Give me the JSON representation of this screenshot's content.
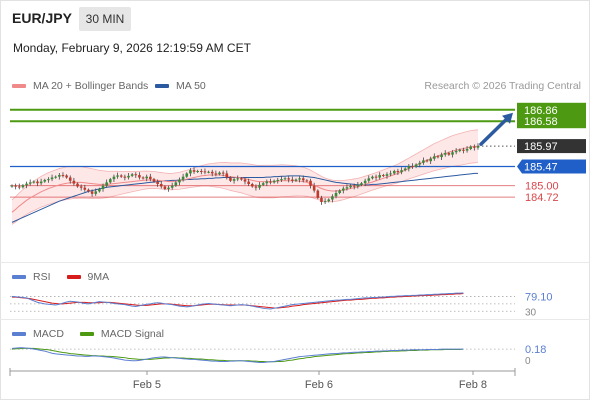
{
  "header": {
    "symbol": "EUR/JPY",
    "timeframe": "30 MIN",
    "datetime": "Monday, February 9, 2026 12:19:59 AM CET"
  },
  "legend": {
    "ma20_label": "MA 20 + Bollinger Bands",
    "ma50_label": "MA 50",
    "rsi_label": "RSI",
    "rsi_ma_label": "9MA",
    "macd_label": "MACD",
    "macd_signal_label": "MACD Signal"
  },
  "credit": "Research © 2026 Trading Central",
  "colors": {
    "ma20": "#f08a8a",
    "ma50": "#2c5aa0",
    "bollinger_fill": "#fde3e3",
    "candle_up": "#3a8a3a",
    "candle_down": "#c0392b",
    "target_green": "#4d9a12",
    "pivot_blue": "#1f5fc7",
    "support_red": "#d9474b",
    "last_price_bg": "#333333",
    "rsi": "#5b7fd1",
    "rsi_ma": "#d81b1b",
    "macd": "#5b7fd1",
    "macd_signal": "#4d9a12"
  },
  "chart_data": [
    {
      "type": "candlestick",
      "name": "price",
      "x_ticks": [
        "Feb 5",
        "Feb 6",
        "Feb 8"
      ],
      "ylim": [
        183.3,
        187.1
      ],
      "levels": [
        {
          "value": 186.86,
          "label": "186.86",
          "kind": "target"
        },
        {
          "value": 186.58,
          "label": "186.58",
          "kind": "target"
        },
        {
          "value": 185.97,
          "label": "185.97",
          "kind": "last"
        },
        {
          "value": 185.47,
          "label": "185.47",
          "kind": "pivot"
        },
        {
          "value": 185.0,
          "label": "185.00",
          "kind": "support"
        },
        {
          "value": 184.72,
          "label": "184.72",
          "kind": "support"
        }
      ],
      "closes": [
        185.0,
        184.98,
        184.96,
        185.01,
        185.05,
        185.08,
        185.1,
        185.06,
        185.1,
        185.14,
        185.16,
        185.2,
        185.22,
        185.26,
        185.25,
        185.2,
        185.12,
        185.05,
        184.98,
        184.95,
        184.9,
        184.86,
        184.8,
        184.86,
        184.92,
        185.0,
        185.08,
        185.16,
        185.22,
        185.25,
        185.22,
        185.2,
        185.24,
        185.28,
        185.26,
        185.2,
        185.18,
        185.22,
        185.16,
        185.1,
        185.04,
        184.98,
        184.92,
        184.95,
        185.0,
        185.08,
        185.15,
        185.22,
        185.3,
        185.38,
        185.34,
        185.36,
        185.35,
        185.33,
        185.34,
        185.3,
        185.28,
        185.32,
        185.3,
        185.2,
        185.12,
        185.16,
        185.18,
        185.15,
        185.1,
        185.04,
        184.98,
        184.95,
        185.02,
        185.06,
        185.1,
        185.08,
        185.12,
        185.14,
        185.16,
        185.18,
        185.15,
        185.12,
        185.15,
        185.18,
        185.13,
        185.12,
        185.0,
        184.88,
        184.7,
        184.6,
        184.62,
        184.66,
        184.74,
        184.82,
        184.88,
        184.93,
        184.96,
        185.0,
        184.98,
        185.02,
        185.06,
        185.12,
        185.18,
        185.22,
        185.2,
        185.26,
        185.24,
        185.28,
        185.3,
        185.36,
        185.33,
        185.38,
        185.42,
        185.48,
        185.46,
        185.52,
        185.56,
        185.62,
        185.6,
        185.66,
        185.72,
        185.7,
        185.76,
        185.8,
        185.76,
        185.82,
        185.85,
        185.88,
        185.86,
        185.9,
        185.96,
        185.93,
        185.97
      ],
      "ma20": [
        184.35,
        184.42,
        184.5,
        184.57,
        184.64,
        184.7,
        184.75,
        184.8,
        184.85,
        184.89,
        184.93,
        184.96,
        184.99,
        185.02,
        185.04,
        185.06,
        185.07,
        185.08,
        185.08,
        185.08,
        185.07,
        185.06,
        185.05,
        185.04,
        185.03,
        185.03,
        185.03,
        185.04,
        185.05,
        185.06,
        185.07,
        185.08,
        185.09,
        185.1,
        185.11,
        185.12,
        185.13,
        185.14,
        185.14,
        185.14,
        185.13,
        185.12,
        185.11,
        185.1,
        185.1,
        185.11,
        185.12,
        185.14,
        185.16,
        185.18,
        185.2,
        185.22,
        185.24,
        185.25,
        185.26,
        185.26,
        185.26,
        185.26,
        185.25,
        185.24,
        185.22,
        185.21,
        185.2,
        185.19,
        185.17,
        185.15,
        185.13,
        185.11,
        185.1,
        185.1,
        185.1,
        185.1,
        185.1,
        185.11,
        185.12,
        185.12,
        185.12,
        185.12,
        185.12,
        185.11,
        185.1,
        185.08,
        185.05,
        185.01,
        184.97,
        184.93,
        184.9,
        184.88,
        184.87,
        184.87,
        184.88,
        184.89,
        184.91,
        184.93,
        184.95,
        184.97,
        185.0,
        185.03,
        185.06,
        185.09,
        185.12,
        185.15,
        185.18,
        185.21,
        185.24,
        185.27,
        185.3,
        185.34,
        185.38,
        185.42,
        185.46,
        185.5,
        185.54,
        185.58,
        185.62,
        185.66,
        185.7,
        185.73,
        185.76,
        185.79,
        185.82,
        185.85,
        185.87,
        185.89,
        185.91,
        185.93,
        185.95,
        185.96,
        185.97
      ],
      "ma50": [
        184.1,
        184.14,
        184.18,
        184.22,
        184.26,
        184.3,
        184.34,
        184.38,
        184.42,
        184.46,
        184.5,
        184.54,
        184.58,
        184.62,
        184.65,
        184.68,
        184.71,
        184.74,
        184.77,
        184.8,
        184.83,
        184.86,
        184.88,
        184.9,
        184.92,
        184.94,
        184.96,
        184.97,
        184.98,
        184.99,
        185.0,
        185.01,
        185.02,
        185.03,
        185.04,
        185.05,
        185.06,
        185.07,
        185.08,
        185.09,
        185.1,
        185.11,
        185.12,
        185.12,
        185.13,
        185.13,
        185.14,
        185.14,
        185.15,
        185.15,
        185.16,
        185.16,
        185.17,
        185.17,
        185.18,
        185.18,
        185.19,
        185.19,
        185.2,
        185.2,
        185.2,
        185.2,
        185.2,
        185.2,
        185.2,
        185.2,
        185.2,
        185.2,
        185.2,
        185.2,
        185.21,
        185.21,
        185.22,
        185.22,
        185.23,
        185.23,
        185.24,
        185.24,
        185.24,
        185.24,
        185.23,
        185.22,
        185.21,
        185.2,
        185.18,
        185.16,
        185.14,
        185.12,
        185.1,
        185.08,
        185.07,
        185.06,
        185.05,
        185.04,
        185.03,
        185.02,
        185.02,
        185.02,
        185.02,
        185.03,
        185.03,
        185.04,
        185.05,
        185.06,
        185.07,
        185.08,
        185.09,
        185.1,
        185.11,
        185.12,
        185.13,
        185.14,
        185.15,
        185.16,
        185.17,
        185.18,
        185.19,
        185.2,
        185.21,
        185.22,
        185.23,
        185.24,
        185.25,
        185.26,
        185.27,
        185.28,
        185.29,
        185.3,
        185.3
      ]
    },
    {
      "type": "line",
      "name": "RSI",
      "ylim": [
        20,
        90
      ],
      "last_label": "79.10",
      "clipped_tick": "30",
      "reference_lines": [
        70,
        50,
        30
      ],
      "rsi": [
        70,
        69,
        68,
        67,
        66,
        62,
        58,
        54,
        52,
        50,
        49,
        48,
        47,
        49,
        52,
        55,
        57,
        56,
        55,
        53,
        51,
        50,
        52,
        54,
        56,
        55,
        54,
        53,
        51,
        50,
        49,
        48,
        46,
        44,
        43,
        45,
        47,
        49,
        50,
        52,
        53,
        52,
        50,
        49,
        48,
        46,
        44,
        43,
        42,
        43,
        45,
        47,
        49,
        50,
        51,
        50,
        49,
        48,
        47,
        46,
        45,
        46,
        47,
        48,
        47,
        46,
        44,
        42,
        40,
        38,
        37,
        36,
        38,
        40,
        42,
        44,
        46,
        48,
        49,
        50,
        51,
        52,
        53,
        54,
        55,
        56,
        57,
        58,
        59,
        60,
        60,
        61,
        62,
        62,
        63,
        64,
        65,
        66,
        66,
        67,
        67,
        68,
        68,
        69,
        70,
        70,
        71,
        71,
        72,
        72,
        73,
        73,
        74,
        74,
        75,
        75,
        76,
        76,
        77,
        77,
        78,
        78,
        79,
        79,
        79.1
      ],
      "rsi_ma": [
        68,
        68,
        67,
        66,
        65,
        64,
        62,
        60,
        58,
        56,
        54,
        52,
        51,
        50,
        50,
        51,
        52,
        53,
        54,
        54,
        54,
        53,
        53,
        53,
        53,
        54,
        54,
        54,
        53,
        52,
        51,
        50,
        49,
        48,
        47,
        46,
        46,
        46,
        47,
        48,
        49,
        50,
        50,
        50,
        49,
        48,
        47,
        46,
        45,
        45,
        45,
        46,
        47,
        48,
        49,
        49,
        49,
        48,
        48,
        47,
        47,
        47,
        47,
        47,
        47,
        46,
        45,
        44,
        43,
        42,
        41,
        40,
        39,
        39,
        40,
        41,
        42,
        44,
        45,
        46,
        48,
        49,
        50,
        51,
        52,
        53,
        54,
        55,
        56,
        57,
        58,
        59,
        60,
        60,
        61,
        62,
        62,
        63,
        64,
        65,
        65,
        66,
        66,
        67,
        68,
        68,
        69,
        69,
        70,
        70,
        71,
        71,
        72,
        72,
        73,
        73,
        74,
        74,
        75,
        75,
        76,
        76,
        77,
        77,
        78
      ]
    },
    {
      "type": "line",
      "name": "MACD",
      "ylim": [
        -0.4,
        0.3
      ],
      "last_label": "0.18",
      "zero_label": "0",
      "macd": [
        0.2,
        0.21,
        0.22,
        0.22,
        0.21,
        0.2,
        0.18,
        0.16,
        0.14,
        0.12,
        0.09,
        0.06,
        0.04,
        0.03,
        0.02,
        0.01,
        0.0,
        -0.01,
        -0.02,
        -0.02,
        -0.03,
        -0.03,
        -0.02,
        -0.02,
        -0.03,
        -0.04,
        -0.05,
        -0.06,
        -0.08,
        -0.1,
        -0.12,
        -0.14,
        -0.15,
        -0.16,
        -0.16,
        -0.15,
        -0.13,
        -0.11,
        -0.09,
        -0.07,
        -0.06,
        -0.05,
        -0.05,
        -0.06,
        -0.07,
        -0.08,
        -0.09,
        -0.1,
        -0.11,
        -0.12,
        -0.12,
        -0.13,
        -0.14,
        -0.15,
        -0.16,
        -0.17,
        -0.17,
        -0.18,
        -0.18,
        -0.18,
        -0.17,
        -0.17,
        -0.16,
        -0.16,
        -0.17,
        -0.18,
        -0.19,
        -0.2,
        -0.21,
        -0.21,
        -0.2,
        -0.19,
        -0.18,
        -0.16,
        -0.14,
        -0.12,
        -0.1,
        -0.08,
        -0.06,
        -0.04,
        -0.03,
        -0.02,
        -0.01,
        0.0,
        0.01,
        0.02,
        0.03,
        0.04,
        0.05,
        0.05,
        0.06,
        0.07,
        0.07,
        0.08,
        0.09,
        0.09,
        0.1,
        0.1,
        0.11,
        0.11,
        0.12,
        0.12,
        0.13,
        0.13,
        0.14,
        0.14,
        0.14,
        0.15,
        0.15,
        0.15,
        0.16,
        0.16,
        0.16,
        0.16,
        0.17,
        0.17,
        0.17,
        0.17,
        0.18,
        0.18,
        0.18,
        0.18,
        0.18,
        0.18,
        0.18
      ],
      "signal": [
        0.18,
        0.19,
        0.19,
        0.2,
        0.2,
        0.2,
        0.2,
        0.19,
        0.18,
        0.17,
        0.16,
        0.14,
        0.12,
        0.1,
        0.08,
        0.07,
        0.05,
        0.04,
        0.03,
        0.02,
        0.01,
        0.0,
        -0.01,
        -0.01,
        -0.02,
        -0.02,
        -0.03,
        -0.03,
        -0.04,
        -0.05,
        -0.06,
        -0.07,
        -0.09,
        -0.1,
        -0.11,
        -0.12,
        -0.12,
        -0.12,
        -0.12,
        -0.11,
        -0.1,
        -0.09,
        -0.08,
        -0.08,
        -0.07,
        -0.07,
        -0.08,
        -0.08,
        -0.09,
        -0.09,
        -0.1,
        -0.11,
        -0.11,
        -0.12,
        -0.13,
        -0.13,
        -0.14,
        -0.15,
        -0.15,
        -0.16,
        -0.16,
        -0.16,
        -0.16,
        -0.16,
        -0.16,
        -0.16,
        -0.17,
        -0.17,
        -0.18,
        -0.18,
        -0.19,
        -0.19,
        -0.19,
        -0.18,
        -0.18,
        -0.17,
        -0.15,
        -0.14,
        -0.12,
        -0.1,
        -0.09,
        -0.07,
        -0.06,
        -0.04,
        -0.03,
        -0.02,
        -0.01,
        0.0,
        0.01,
        0.02,
        0.03,
        0.04,
        0.05,
        0.05,
        0.06,
        0.07,
        0.07,
        0.08,
        0.08,
        0.09,
        0.1,
        0.1,
        0.11,
        0.11,
        0.12,
        0.12,
        0.12,
        0.13,
        0.13,
        0.14,
        0.14,
        0.14,
        0.15,
        0.15,
        0.15,
        0.16,
        0.16,
        0.16,
        0.16,
        0.17,
        0.17,
        0.17,
        0.17,
        0.17,
        0.18
      ]
    }
  ]
}
